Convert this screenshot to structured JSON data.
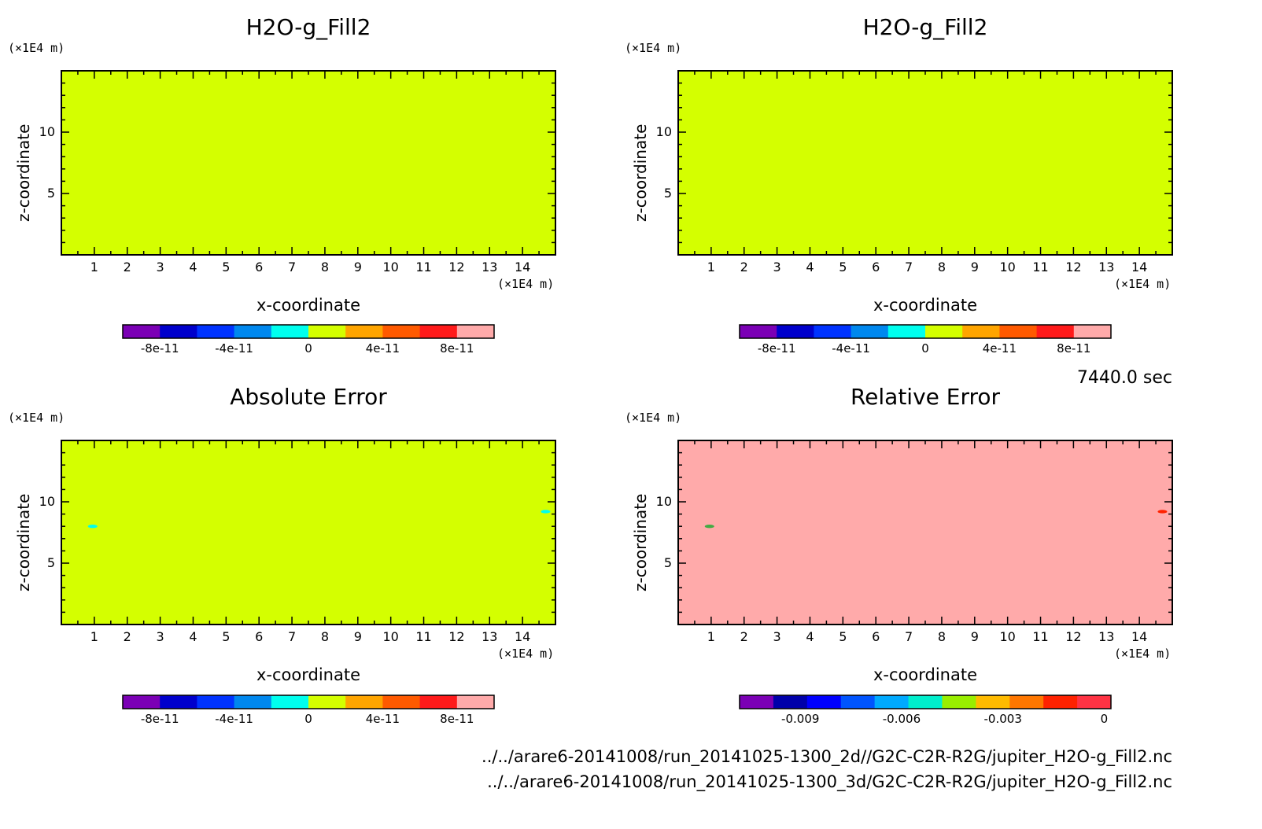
{
  "chart_data": [
    {
      "type": "heatmap",
      "title": "H2O-g_Fill2",
      "xlabel": "x-coordinate",
      "ylabel": "z-coordinate",
      "x_unit": "(×1E4 m)",
      "y_unit": "(×1E4 m)",
      "xlim": [
        0,
        15
      ],
      "ylim": [
        0,
        15
      ],
      "x_ticks": [
        1,
        2,
        3,
        4,
        5,
        6,
        7,
        8,
        9,
        10,
        11,
        12,
        13,
        14
      ],
      "y_ticks": [
        5,
        10
      ],
      "field_color": "#d4ff00",
      "colorbar": {
        "colors": [
          "#7b00b5",
          "#0000cc",
          "#0033ff",
          "#0088ee",
          "#00ffee",
          "#d4ff00",
          "#ffa500",
          "#ff5a00",
          "#ff1a1a",
          "#ffaaaa"
        ],
        "tick_labels": [
          "-8e-11",
          "-4e-11",
          "0",
          "4e-11",
          "8e-11"
        ],
        "tick_positions": [
          1,
          3,
          5,
          7,
          9
        ]
      },
      "features": []
    },
    {
      "type": "heatmap",
      "title": "H2O-g_Fill2",
      "xlabel": "x-coordinate",
      "ylabel": "z-coordinate",
      "x_unit": "(×1E4 m)",
      "y_unit": "(×1E4 m)",
      "xlim": [
        0,
        15
      ],
      "ylim": [
        0,
        15
      ],
      "x_ticks": [
        1,
        2,
        3,
        4,
        5,
        6,
        7,
        8,
        9,
        10,
        11,
        12,
        13,
        14
      ],
      "y_ticks": [
        5,
        10
      ],
      "field_color": "#d4ff00",
      "colorbar": {
        "colors": [
          "#7b00b5",
          "#0000cc",
          "#0033ff",
          "#0088ee",
          "#00ffee",
          "#d4ff00",
          "#ffa500",
          "#ff5a00",
          "#ff1a1a",
          "#ffaaaa"
        ],
        "tick_labels": [
          "-8e-11",
          "-4e-11",
          "0",
          "4e-11",
          "8e-11"
        ],
        "tick_positions": [
          1,
          3,
          5,
          7,
          9
        ]
      },
      "features": []
    },
    {
      "type": "heatmap",
      "title": "Absolute Error",
      "xlabel": "x-coordinate",
      "ylabel": "z-coordinate",
      "x_unit": "(×1E4 m)",
      "y_unit": "(×1E4 m)",
      "xlim": [
        0,
        15
      ],
      "ylim": [
        0,
        15
      ],
      "x_ticks": [
        1,
        2,
        3,
        4,
        5,
        6,
        7,
        8,
        9,
        10,
        11,
        12,
        13,
        14
      ],
      "y_ticks": [
        5,
        10
      ],
      "field_color": "#d4ff00",
      "colorbar": {
        "colors": [
          "#7b00b5",
          "#0000cc",
          "#0033ff",
          "#0088ee",
          "#00ffee",
          "#d4ff00",
          "#ffa500",
          "#ff5a00",
          "#ff1a1a",
          "#ffaaaa"
        ],
        "tick_labels": [
          "-8e-11",
          "-4e-11",
          "0",
          "4e-11",
          "8e-11"
        ],
        "tick_positions": [
          1,
          3,
          5,
          7,
          9
        ]
      },
      "features": [
        {
          "x": 0.95,
          "y": 8.0,
          "color": "#00ffee"
        },
        {
          "x": 14.7,
          "y": 9.2,
          "color": "#00ffee"
        }
      ]
    },
    {
      "type": "heatmap",
      "title": "Relative Error",
      "xlabel": "x-coordinate",
      "ylabel": "z-coordinate",
      "x_unit": "(×1E4 m)",
      "y_unit": "(×1E4 m)",
      "xlim": [
        0,
        15
      ],
      "ylim": [
        0,
        15
      ],
      "x_ticks": [
        1,
        2,
        3,
        4,
        5,
        6,
        7,
        8,
        9,
        10,
        11,
        12,
        13,
        14
      ],
      "y_ticks": [
        5,
        10
      ],
      "field_color": "#ffaaaa",
      "colorbar": {
        "colors": [
          "#7b00b5",
          "#0000aa",
          "#0000ff",
          "#0055ff",
          "#00aaff",
          "#00eecc",
          "#99ee00",
          "#ffbb00",
          "#ff7700",
          "#ff2200",
          "#ff3344"
        ],
        "tick_labels": [
          "-0.009",
          "-0.006",
          "-0.003",
          "0"
        ],
        "tick_positions": [
          1.8,
          4.8,
          7.8,
          10.8
        ]
      },
      "features": [
        {
          "x": 0.95,
          "y": 8.0,
          "color": "#44aa44"
        },
        {
          "x": 14.7,
          "y": 9.2,
          "color": "#ff2200"
        }
      ]
    }
  ],
  "time_label": "7440.0 sec",
  "file_paths": [
    "../../arare6-20141008/run_20141025-1300_2d//G2C-C2R-R2G/jupiter_H2O-g_Fill2.nc",
    "../../arare6-20141008/run_20141025-1300_3d/G2C-C2R-R2G/jupiter_H2O-g_Fill2.nc"
  ]
}
